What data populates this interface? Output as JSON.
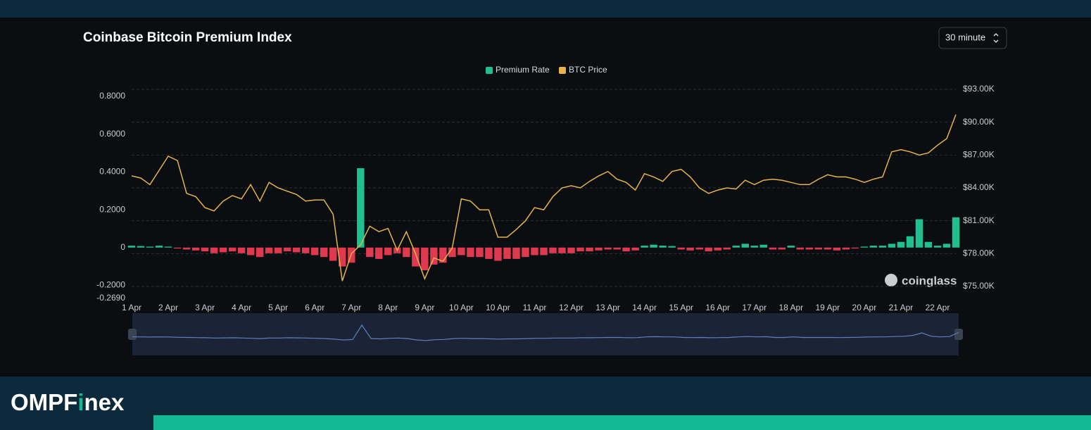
{
  "chart_data": {
    "type": "bar_line",
    "title": "Coinbase Bitcoin Premium Index",
    "interval": "30 minute",
    "watermark": "coinglass",
    "categories": [
      "1 Apr",
      null,
      null,
      null,
      "2 Apr",
      null,
      null,
      null,
      "3 Apr",
      null,
      null,
      null,
      "4 Apr",
      null,
      null,
      null,
      "5 Apr",
      null,
      null,
      null,
      "6 Apr",
      null,
      null,
      null,
      "7 Apr",
      null,
      null,
      null,
      "8 Apr",
      null,
      null,
      null,
      "9 Apr",
      null,
      null,
      null,
      "10 Apr",
      null,
      null,
      null,
      "10 Apr",
      null,
      null,
      null,
      "11 Apr",
      null,
      null,
      null,
      "12 Apr",
      null,
      null,
      null,
      "13 Apr",
      null,
      null,
      null,
      "14 Apr",
      null,
      null,
      null,
      "15 Apr",
      null,
      null,
      null,
      "16 Apr",
      null,
      null,
      null,
      "17 Apr",
      null,
      null,
      null,
      "18 Apr",
      null,
      null,
      null,
      "19 Apr",
      null,
      null,
      null,
      "20 Apr",
      null,
      null,
      null,
      "21 Apr",
      null,
      null,
      null,
      "22 Apr",
      null,
      null
    ],
    "series": [
      {
        "name": "Premium Rate",
        "type": "bar",
        "color": "#1fbf8f",
        "negative_color": "#e0394f",
        "values": [
          0.01,
          0.008,
          0.005,
          0.01,
          0.005,
          -0.005,
          -0.01,
          -0.015,
          -0.02,
          -0.03,
          -0.025,
          -0.02,
          -0.03,
          -0.04,
          -0.05,
          -0.03,
          -0.03,
          -0.02,
          -0.025,
          -0.03,
          -0.04,
          -0.05,
          -0.07,
          -0.1,
          -0.08,
          0.42,
          -0.05,
          -0.06,
          -0.04,
          -0.03,
          -0.05,
          -0.1,
          -0.12,
          -0.09,
          -0.08,
          -0.05,
          -0.04,
          -0.05,
          -0.05,
          -0.06,
          -0.07,
          -0.06,
          -0.06,
          -0.05,
          -0.04,
          -0.04,
          -0.03,
          -0.03,
          -0.03,
          -0.02,
          -0.02,
          -0.015,
          -0.01,
          -0.01,
          -0.02,
          -0.015,
          0.01,
          0.015,
          0.01,
          0.008,
          -0.01,
          -0.015,
          -0.01,
          -0.02,
          -0.015,
          -0.01,
          0.01,
          0.02,
          0.01,
          0.015,
          -0.01,
          -0.01,
          0.01,
          -0.01,
          -0.01,
          -0.01,
          -0.01,
          -0.015,
          -0.01,
          -0.005,
          0.005,
          0.01,
          0.01,
          0.02,
          0.03,
          0.06,
          0.15,
          0.03,
          0.01,
          0.02,
          0.16
        ]
      },
      {
        "name": "BTC Price",
        "type": "line",
        "axis": "y2",
        "color": "#e6b24a",
        "values": [
          85100,
          84900,
          84300,
          85600,
          86900,
          86500,
          83500,
          83200,
          82200,
          81900,
          82800,
          83300,
          83000,
          84300,
          82800,
          84500,
          84000,
          83700,
          83400,
          82800,
          82900,
          82900,
          81600,
          75500,
          78000,
          78800,
          80500,
          80000,
          80300,
          78300,
          80000,
          78000,
          75700,
          77600,
          77300,
          78500,
          83000,
          82800,
          82000,
          82000,
          79500,
          79500,
          80200,
          81000,
          82200,
          82000,
          83200,
          84000,
          84200,
          84000,
          84600,
          85100,
          85500,
          84800,
          84500,
          83800,
          85300,
          85000,
          84600,
          85500,
          85700,
          85000,
          84000,
          83500,
          83800,
          84000,
          83900,
          84700,
          84300,
          84700,
          84800,
          84700,
          84500,
          84300,
          84300,
          84800,
          85200,
          85000,
          85000,
          84800,
          84500,
          84800,
          85000,
          87300,
          87500,
          87300,
          87000,
          87200,
          87900,
          88500,
          90700
        ]
      }
    ],
    "ylim": [
      -0.269,
      0.8372
    ],
    "yticks": [
      {
        "value": 0.8,
        "label": "0.8000"
      },
      {
        "value": 0.6,
        "label": "0.6000"
      },
      {
        "value": 0.4,
        "label": "0.4000"
      },
      {
        "value": 0.2,
        "label": "0.2000"
      },
      0,
      {
        "value": -0.2,
        "label": "-0.2000"
      },
      {
        "value": -0.269,
        "label": "-0.2690"
      }
    ],
    "y2lim": [
      73907,
      93000
    ],
    "y2ticks": [
      {
        "value": 93000,
        "label": "$93.00K"
      },
      {
        "value": 90000,
        "label": "$90.00K"
      },
      {
        "value": 87000,
        "label": "$87.00K"
      },
      {
        "value": 84000,
        "label": "$84.00K"
      },
      {
        "value": 81000,
        "label": "$81.00K"
      },
      {
        "value": 78000,
        "label": "$78.00K"
      },
      {
        "value": 75000,
        "label": "$75.00K"
      }
    ],
    "grid": true,
    "legend": "top"
  },
  "brand": {
    "parts": [
      "OMPF",
      "i",
      "nex"
    ]
  }
}
